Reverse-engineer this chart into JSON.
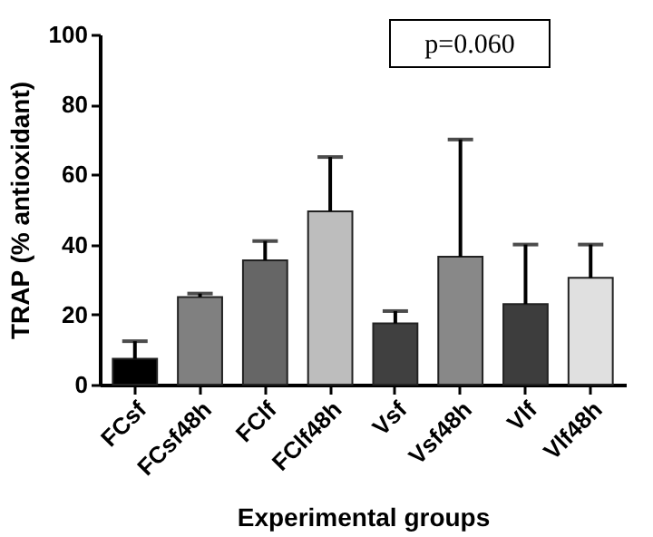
{
  "chart_data": {
    "type": "bar",
    "xlabel": "Experimental groups",
    "ylabel": "TRAP (% antioxidant)",
    "categories": [
      "FCsf",
      "FCsf48h",
      "FClf",
      "FClf48h",
      "Vsf",
      "Vsf48h",
      "Vlf",
      "Vlf48h"
    ],
    "values": [
      7.4,
      25,
      35.5,
      49.5,
      17.5,
      36.5,
      23,
      30.5
    ],
    "errors": [
      [
        7.4,
        12.4
      ],
      [
        25,
        26
      ],
      [
        35.5,
        41
      ],
      [
        49.5,
        65
      ],
      [
        17.5,
        21
      ],
      [
        36.5,
        70
      ],
      [
        23,
        40
      ],
      [
        30.5,
        40
      ]
    ],
    "colors": [
      "#000000",
      "#808080",
      "#666666",
      "#bdbdbd",
      "#404040",
      "#888888",
      "#3d3d3d",
      "#e0e0e0"
    ],
    "ylim": [
      0,
      100
    ],
    "yticks": [
      0,
      20,
      40,
      60,
      80,
      100
    ],
    "grid": false,
    "legend": false,
    "annotations": [
      "p=0.060"
    ]
  }
}
